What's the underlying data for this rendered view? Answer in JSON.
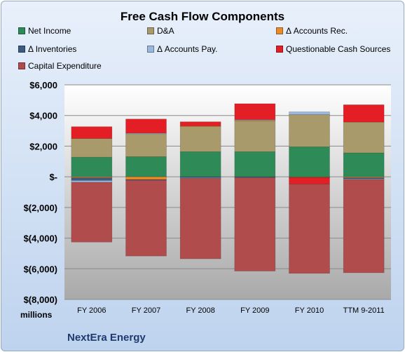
{
  "chart_data": {
    "type": "bar",
    "stacked": true,
    "title": "Free Cash Flow Components",
    "ylabel": "millions",
    "company": "NextEra Energy",
    "categories": [
      "FY 2006",
      "FY 2007",
      "FY 2008",
      "FY 2009",
      "FY 2010",
      "TTM 9-2011"
    ],
    "ylim": [
      -8000,
      6000
    ],
    "yticks": [
      6000,
      4000,
      2000,
      0,
      -2000,
      -4000,
      -6000,
      -8000
    ],
    "ytick_labels": [
      "$6,000",
      "$4,000",
      "$2,000",
      "$-",
      "$(2,000)",
      "$(4,000)",
      "$(6,000)",
      "$(8,000)"
    ],
    "grid": true,
    "legend_position": "top",
    "series": [
      {
        "name": "Net Income",
        "color": "#2e8b57",
        "values": [
          1280,
          1310,
          1640,
          1640,
          1960,
          1560
        ]
      },
      {
        "name": "D&A",
        "color": "#a89a6a",
        "values": [
          1220,
          1500,
          1650,
          2010,
          2100,
          2010
        ]
      },
      {
        "name": "Δ Accounts Rec.",
        "color": "#e88c2a",
        "values": [
          -60,
          -180,
          30,
          50,
          -30,
          -60
        ]
      },
      {
        "name": "Δ Inventories",
        "color": "#3d5a80",
        "values": [
          -180,
          -40,
          -60,
          -50,
          -20,
          -80
        ]
      },
      {
        "name": "Δ Accounts Pay.",
        "color": "#9ab7de",
        "values": [
          -120,
          40,
          -40,
          30,
          180,
          -40
        ]
      },
      {
        "name": "Questionable Cash Sources",
        "color": "#e31e24",
        "values": [
          770,
          920,
          270,
          1040,
          -420,
          1130
        ]
      },
      {
        "name": "Capital Expenditure",
        "color": "#b04c4c",
        "values": [
          -3900,
          -4950,
          -5250,
          -6100,
          -5830,
          -6080
        ]
      }
    ]
  }
}
